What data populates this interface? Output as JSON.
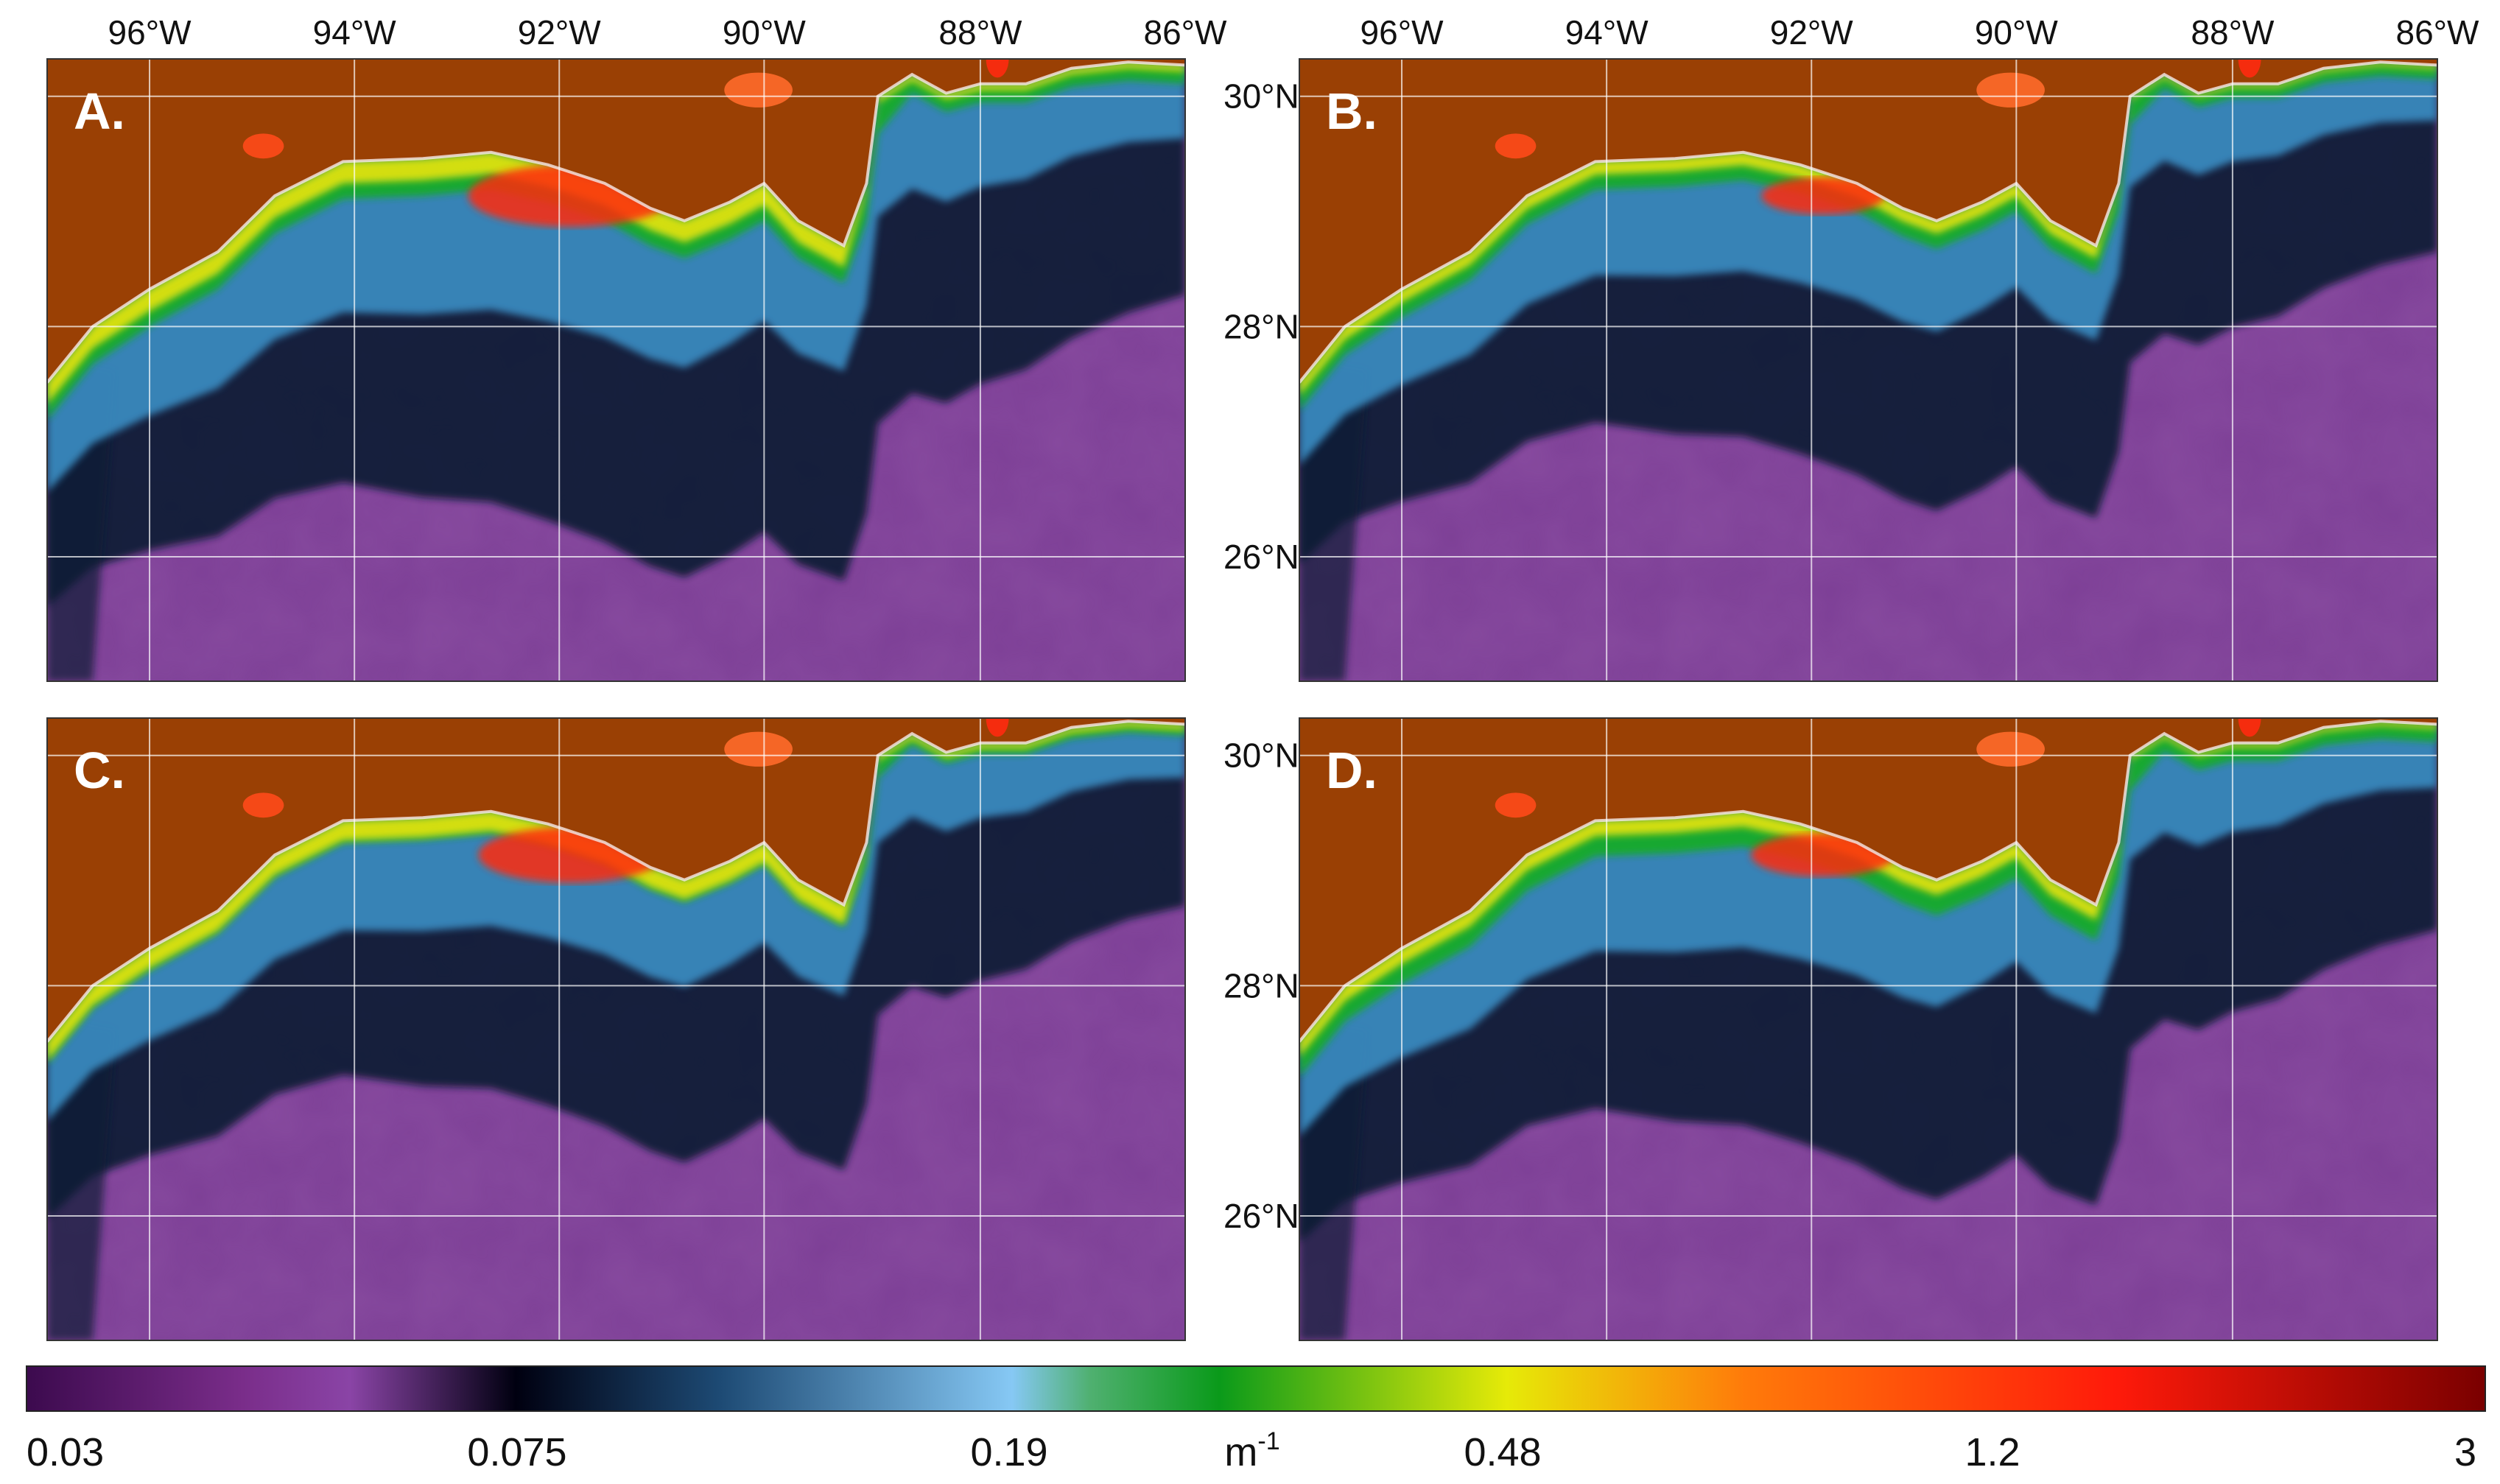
{
  "figure": {
    "type": "map-grid",
    "variable_unit": "m",
    "variable_unit_exponent": "-1",
    "lon_labels": [
      "96°W",
      "94°W",
      "92°W",
      "90°W",
      "88°W",
      "86°W"
    ],
    "lat_labels": [
      "30°N",
      "28°N",
      "26°N"
    ],
    "lon_range": [
      -97,
      -86
    ],
    "lat_range": [
      25,
      30.5
    ],
    "panels": [
      {
        "label": "A."
      },
      {
        "label": "B."
      },
      {
        "label": "C."
      },
      {
        "label": "D."
      }
    ]
  },
  "colorbar": {
    "tick_labels": [
      "0.03",
      "0.075",
      "0.19",
      "0.48",
      "1.2",
      "3"
    ],
    "min": 0.03,
    "max": 3,
    "scale": "log",
    "stops": [
      {
        "value": 0.03,
        "color": "#3c0a4e"
      },
      {
        "value": 0.045,
        "color": "#7a2d8a"
      },
      {
        "value": 0.055,
        "color": "#8a44a6"
      },
      {
        "value": 0.075,
        "color": "#000010"
      },
      {
        "value": 0.11,
        "color": "#1d4a74"
      },
      {
        "value": 0.19,
        "color": "#86c8f4"
      },
      {
        "value": 0.22,
        "color": "#4fb070"
      },
      {
        "value": 0.28,
        "color": "#0a9a1a"
      },
      {
        "value": 0.48,
        "color": "#e6ea08"
      },
      {
        "value": 0.75,
        "color": "#ff7a0a"
      },
      {
        "value": 1.5,
        "color": "#ff1a0a"
      },
      {
        "value": 3,
        "color": "#7a0000"
      }
    ]
  },
  "colors": {
    "land": "#9a4004",
    "deep_water": "#7d3f96",
    "shelf_dark": "#0b1a34",
    "shelf_blue": "#3a8ec4",
    "high_green": "#18aa2a",
    "high_yellow": "#e8e410",
    "high_red": "#ff2a10"
  }
}
